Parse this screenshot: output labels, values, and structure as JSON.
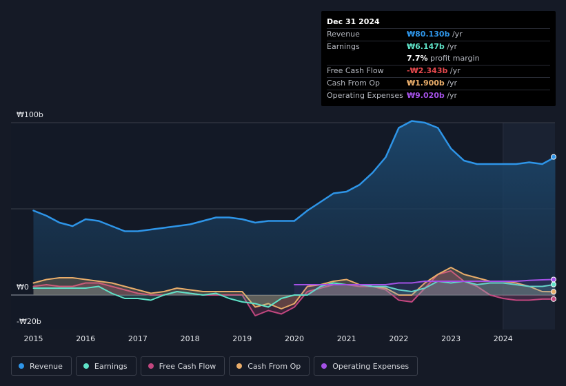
{
  "chart_data": {
    "type": "area",
    "x": [
      2015.0,
      2015.25,
      2015.5,
      2015.75,
      2016.0,
      2016.25,
      2016.5,
      2016.75,
      2017.0,
      2017.25,
      2017.5,
      2017.75,
      2018.0,
      2018.25,
      2018.5,
      2018.75,
      2019.0,
      2019.25,
      2019.5,
      2019.75,
      2020.0,
      2020.25,
      2020.5,
      2020.75,
      2021.0,
      2021.25,
      2021.5,
      2021.75,
      2022.0,
      2022.25,
      2022.5,
      2022.75,
      2023.0,
      2023.25,
      2023.5,
      2023.75,
      2024.0,
      2024.25,
      2024.5,
      2024.75,
      2025.0
    ],
    "series": [
      {
        "name": "Revenue",
        "color": "#2e95e8",
        "values": [
          49,
          46,
          42,
          40,
          44,
          43,
          40,
          37,
          37,
          38,
          39,
          40,
          41,
          43,
          45,
          45,
          44,
          42,
          43,
          43,
          43,
          49,
          54,
          59,
          60,
          64,
          71,
          80,
          97,
          101,
          100,
          97,
          85,
          78,
          76,
          76,
          76,
          76,
          77,
          76,
          80.13
        ]
      },
      {
        "name": "Earnings",
        "color": "#5fe3c8",
        "values": [
          4,
          4,
          4,
          4,
          4,
          5,
          1,
          -2,
          -2,
          -3,
          0,
          2,
          1,
          0,
          1,
          -2,
          -4,
          -5,
          -7,
          -2,
          0,
          0,
          5,
          7,
          6,
          6,
          5,
          5,
          3,
          2,
          4,
          8,
          7,
          8,
          6,
          7,
          7,
          6,
          5,
          5,
          6.147
        ]
      },
      {
        "name": "Free Cash Flow",
        "color": "#c2477f",
        "values": [
          5,
          6,
          5,
          5,
          7,
          7,
          5,
          3,
          1,
          0,
          0,
          2,
          1,
          0,
          0,
          0,
          0,
          -12,
          -9,
          -11,
          -7,
          2,
          4,
          6,
          6,
          5,
          5,
          3,
          -3,
          -4,
          4,
          12,
          14,
          8,
          5,
          0,
          -2,
          -3,
          -3,
          -2.343,
          -2.343
        ]
      },
      {
        "name": "Cash From Op",
        "color": "#e9ad6a",
        "values": [
          7,
          9,
          10,
          10,
          9,
          8,
          7,
          5,
          3,
          1,
          2,
          4,
          3,
          2,
          2,
          2,
          2,
          -7,
          -5,
          -8,
          -5,
          5,
          6,
          8,
          9,
          6,
          5,
          4,
          0,
          0,
          7,
          12,
          16,
          12,
          10,
          8,
          8,
          7,
          5,
          2,
          1.9
        ]
      },
      {
        "name": "Operating Expenses",
        "color": "#a451e6",
        "values": [
          null,
          null,
          null,
          null,
          null,
          null,
          null,
          null,
          null,
          null,
          null,
          null,
          null,
          null,
          null,
          null,
          null,
          null,
          null,
          null,
          6,
          6,
          6,
          6,
          6,
          6,
          6,
          6,
          7,
          7,
          8,
          8,
          8,
          8,
          8,
          8,
          8,
          8,
          8.5,
          8.8,
          9.02
        ]
      }
    ],
    "xlabel": "",
    "ylabel": "",
    "ylim": [
      -20,
      100
    ],
    "xlim": [
      2014.55,
      2025.0
    ],
    "y_tick_labels": [
      {
        "value": 100,
        "label": "₩100b"
      },
      {
        "value": 0,
        "label": "₩0"
      },
      {
        "value": -20,
        "label": "-₩20b"
      }
    ],
    "gridlines": [
      100,
      50,
      0
    ],
    "x_ticks": [
      2015,
      2016,
      2017,
      2018,
      2019,
      2020,
      2021,
      2022,
      2023,
      2024
    ],
    "x_tick_labels": [
      "2015",
      "2016",
      "2017",
      "2018",
      "2019",
      "2020",
      "2021",
      "2022",
      "2023",
      "2024"
    ],
    "highlight_start": 2024.0,
    "legend": [
      "Revenue",
      "Earnings",
      "Free Cash Flow",
      "Cash From Op",
      "Operating Expenses"
    ],
    "legend_position": "bottom-left"
  },
  "tooltip": {
    "date": "Dec 31 2024",
    "rows": [
      {
        "label": "Revenue",
        "value": "₩80.130b",
        "unit": "/yr",
        "color": "#2e95e8"
      },
      {
        "label": "Earnings",
        "value": "₩6.147b",
        "unit": "/yr",
        "color": "#5fe3c8"
      },
      {
        "label": "",
        "value": "7.7%",
        "unit": "profit margin",
        "color": "#ffffff"
      },
      {
        "label": "Free Cash Flow",
        "value": "-₩2.343b",
        "unit": "/yr",
        "color": "#e5484d"
      },
      {
        "label": "Cash From Op",
        "value": "₩1.900b",
        "unit": "/yr",
        "color": "#e9ad6a"
      },
      {
        "label": "Operating Expenses",
        "value": "₩9.020b",
        "unit": "/yr",
        "color": "#a451e6"
      }
    ]
  },
  "legend": {
    "items": [
      {
        "label": "Revenue",
        "color": "#2e95e8"
      },
      {
        "label": "Earnings",
        "color": "#5fe3c8"
      },
      {
        "label": "Free Cash Flow",
        "color": "#c2477f"
      },
      {
        "label": "Cash From Op",
        "color": "#e9ad6a"
      },
      {
        "label": "Operating Expenses",
        "color": "#a451e6"
      }
    ]
  }
}
